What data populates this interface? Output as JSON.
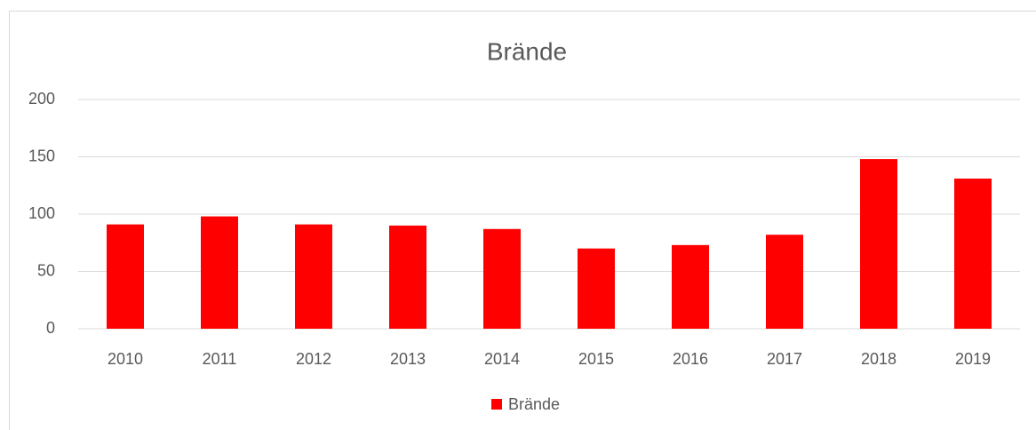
{
  "chart_data": {
    "type": "bar",
    "title": "Brände",
    "categories": [
      "2010",
      "2011",
      "2012",
      "2013",
      "2014",
      "2015",
      "2016",
      "2017",
      "2018",
      "2019"
    ],
    "series": [
      {
        "name": "Brände",
        "color": "#ff0000",
        "values": [
          91,
          98,
          91,
          90,
          87,
          70,
          73,
          82,
          148,
          131
        ]
      }
    ],
    "ylim": [
      0,
      200
    ],
    "yticks": [
      0,
      50,
      100,
      150,
      200
    ],
    "grid": true,
    "legend": "bottom"
  }
}
